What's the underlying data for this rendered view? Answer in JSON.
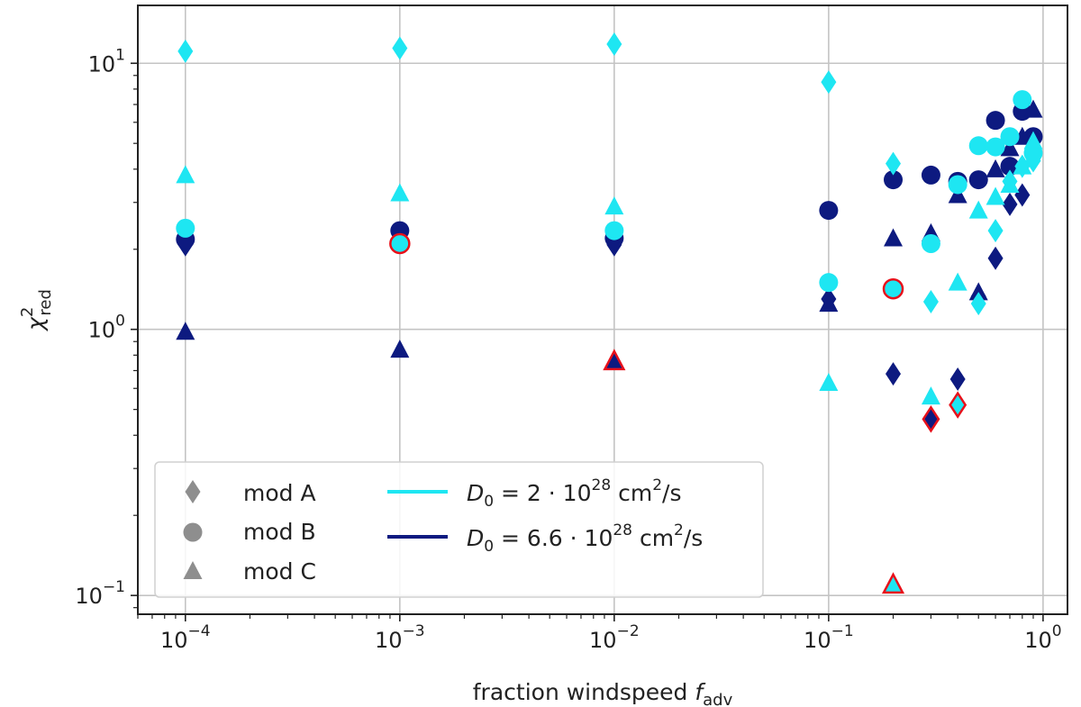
{
  "chart_data": {
    "type": "scatter",
    "xscale": "log",
    "yscale": "log",
    "xlim": [
      6e-05,
      1.3
    ],
    "ylim": [
      0.085,
      16.5
    ],
    "grid": true,
    "xlabel": {
      "base": "fraction windspeed ",
      "var": "f",
      "sub": "adv"
    },
    "ylabel": {
      "var": "χ",
      "sup": "2",
      "sub": "red"
    },
    "xticks": [
      {
        "value": 0.0001,
        "base": "10",
        "exp": "−4"
      },
      {
        "value": 0.001,
        "base": "10",
        "exp": "−3"
      },
      {
        "value": 0.01,
        "base": "10",
        "exp": "−2"
      },
      {
        "value": 0.1,
        "base": "10",
        "exp": "−1"
      },
      {
        "value": 1,
        "base": "10",
        "exp": "0"
      }
    ],
    "yticks": [
      {
        "value": 0.1,
        "base": "10",
        "exp": "−1"
      },
      {
        "value": 1,
        "base": "10",
        "exp": "0"
      },
      {
        "value": 10,
        "base": "10",
        "exp": "1"
      }
    ],
    "colors": {
      "cyan": "#1ee6f2",
      "navy": "#0d1a80",
      "highlight": "#e8101a",
      "legend_marker": "#8e8e8e",
      "grid": "#c4c4c4"
    },
    "legend": {
      "position": "lower-left",
      "markers": [
        {
          "label": "mod A",
          "marker": "diamond"
        },
        {
          "label": "mod B",
          "marker": "circle"
        },
        {
          "label": "mod C",
          "marker": "triangle"
        }
      ],
      "lines": [
        {
          "d0": "D",
          "sub": "0",
          "eq": " = 2 · 10",
          "exp": "28",
          "unit": " cm",
          "unit_exp": "2",
          "unit_tail": "/s",
          "color": "#1ee6f2"
        },
        {
          "d0": "D",
          "sub": "0",
          "eq": " = 6.6 · 10",
          "exp": "28",
          "unit": " cm",
          "unit_exp": "2",
          "unit_tail": "/s",
          "color": "#0d1a80"
        }
      ]
    },
    "series": [
      {
        "name": "mod A, D0 = 6.6e28",
        "marker": "diamond",
        "color": "navy",
        "points": [
          [
            0.0001,
            2.08
          ],
          [
            0.001,
            2.25
          ],
          [
            0.01,
            2.08
          ],
          [
            0.1,
            1.3
          ],
          [
            0.2,
            0.68
          ],
          [
            0.3,
            0.46,
            "highlight"
          ],
          [
            0.4,
            0.65
          ],
          [
            0.5,
            1.33
          ],
          [
            0.6,
            1.85
          ],
          [
            0.7,
            2.95
          ],
          [
            0.8,
            3.2
          ],
          [
            0.9,
            4.4
          ]
        ]
      },
      {
        "name": "mod B, D0 = 6.6e28",
        "marker": "circle",
        "color": "navy",
        "points": [
          [
            0.0001,
            2.18
          ],
          [
            0.001,
            2.35
          ],
          [
            0.01,
            2.2
          ],
          [
            0.1,
            2.8
          ],
          [
            0.2,
            3.65
          ],
          [
            0.3,
            3.8
          ],
          [
            0.4,
            3.6
          ],
          [
            0.5,
            3.65
          ],
          [
            0.6,
            6.1
          ],
          [
            0.7,
            4.1
          ],
          [
            0.8,
            6.6
          ],
          [
            0.9,
            5.3
          ]
        ]
      },
      {
        "name": "mod C, D0 = 6.6e28",
        "marker": "triangle",
        "color": "navy",
        "points": [
          [
            0.0001,
            0.98
          ],
          [
            0.001,
            0.84
          ],
          [
            0.01,
            0.76,
            "highlight"
          ],
          [
            0.1,
            1.25
          ],
          [
            0.2,
            2.2
          ],
          [
            0.3,
            2.3
          ],
          [
            0.4,
            3.2
          ],
          [
            0.5,
            1.38
          ],
          [
            0.6,
            4.0
          ],
          [
            0.7,
            4.8
          ],
          [
            0.8,
            5.3
          ],
          [
            0.9,
            6.7
          ]
        ]
      },
      {
        "name": "mod A, D0 = 2e28",
        "marker": "diamond",
        "color": "cyan",
        "points": [
          [
            0.0001,
            11.1
          ],
          [
            0.001,
            11.4
          ],
          [
            0.01,
            11.8
          ],
          [
            0.1,
            8.5
          ],
          [
            0.2,
            4.2
          ],
          [
            0.3,
            1.27
          ],
          [
            0.4,
            0.52,
            "highlight"
          ],
          [
            0.5,
            1.25
          ],
          [
            0.6,
            2.35
          ],
          [
            0.7,
            3.6
          ],
          [
            0.8,
            4.1
          ],
          [
            0.9,
            4.3
          ]
        ]
      },
      {
        "name": "mod B, D0 = 2e28",
        "marker": "circle",
        "color": "cyan",
        "points": [
          [
            0.0001,
            2.4
          ],
          [
            0.001,
            2.1,
            "highlight"
          ],
          [
            0.01,
            2.35
          ],
          [
            0.1,
            1.5
          ],
          [
            0.2,
            1.42,
            "highlight"
          ],
          [
            0.3,
            2.1
          ],
          [
            0.4,
            3.5
          ],
          [
            0.5,
            4.9
          ],
          [
            0.6,
            4.85
          ],
          [
            0.7,
            5.3
          ],
          [
            0.8,
            7.3
          ],
          [
            0.9,
            4.6
          ]
        ]
      },
      {
        "name": "mod C, D0 = 2e28",
        "marker": "triangle",
        "color": "cyan",
        "points": [
          [
            0.0001,
            3.8
          ],
          [
            0.001,
            3.25
          ],
          [
            0.01,
            2.9
          ],
          [
            0.1,
            0.63
          ],
          [
            0.2,
            0.11,
            "highlight"
          ],
          [
            0.3,
            0.56
          ],
          [
            0.4,
            1.5
          ],
          [
            0.5,
            2.8
          ],
          [
            0.6,
            3.15
          ],
          [
            0.7,
            3.5
          ],
          [
            0.8,
            4.1
          ],
          [
            0.9,
            5.1
          ]
        ]
      }
    ]
  }
}
